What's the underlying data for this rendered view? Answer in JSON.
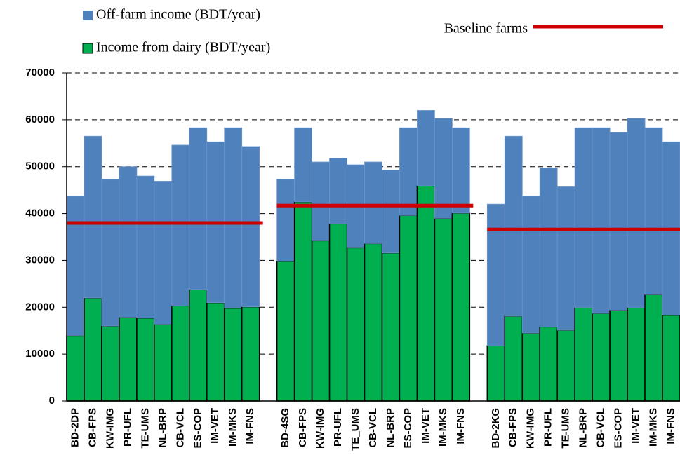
{
  "chart_data": {
    "type": "stacked_bar",
    "categories": [
      "BD-2DP",
      "CB-FPS",
      "KW-IMG",
      "PR-UFL",
      "TE-UMS",
      "NL-BRP",
      "CB-VCL",
      "ES-COP",
      "IM-VET",
      "IM-MKS",
      "IM-FNS",
      null,
      "BD-4SG",
      "CB-FPS",
      "KW-IMG",
      "PR-UFL",
      "TE_UMS",
      "CB-VCL",
      "NL-BRP",
      "ES-COP",
      "IM-VET",
      "IM-MKS",
      "IM-FNS",
      null,
      "BD-2KG",
      "CB-FPS",
      "KW-IMG",
      "PR-UFL",
      "TE-UMS",
      "NL-BRP",
      "CB-VCL",
      "ES-COP",
      "IM-VET",
      "IM-MKS",
      "IM-FNS"
    ],
    "series": [
      {
        "name": "Income from dairy (BDT/year)",
        "color": "#00b050",
        "values": [
          14000,
          22000,
          16000,
          17900,
          17700,
          16400,
          20300,
          23800,
          21000,
          19800,
          20100,
          null,
          29800,
          42500,
          34200,
          37800,
          32700,
          33600,
          31600,
          39600,
          45900,
          39000,
          40100,
          null,
          11800,
          18100,
          14500,
          15800,
          15100,
          19900,
          18700,
          19400,
          19900,
          22700,
          18300
        ]
      },
      {
        "name": "Off-farm income (BDT/year)",
        "color": "#4f81bd",
        "values": [
          29700,
          34500,
          31300,
          32100,
          30300,
          30500,
          34300,
          34500,
          34300,
          38500,
          34200,
          null,
          17500,
          15800,
          16800,
          14000,
          17700,
          17400,
          17700,
          18700,
          16100,
          21300,
          18200,
          null,
          30200,
          38400,
          29200,
          33900,
          30600,
          38400,
          39600,
          37900,
          40400,
          35600,
          37000
        ]
      }
    ],
    "baseline": {
      "name": "Baseline farms",
      "color": "#cc0000",
      "values": [
        38000,
        41700,
        36600
      ]
    },
    "ylim": [
      0,
      70000
    ],
    "yticks": [
      0,
      10000,
      20000,
      30000,
      40000,
      50000,
      60000,
      70000
    ],
    "grid": true
  }
}
